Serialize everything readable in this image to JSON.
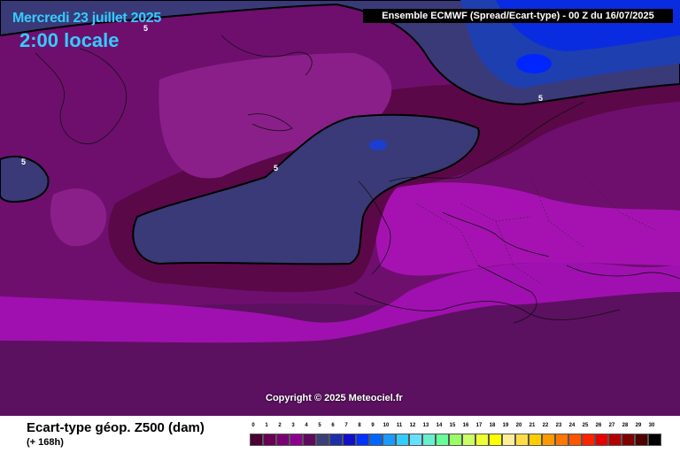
{
  "map": {
    "date_label": "Mercredi 23 juillet 2025",
    "time_label": "2:00 locale",
    "header": "Ensemble ECMWF  (Spread/Ecart-type) - 00 Z du 16/07/2025",
    "copyright": "Copyright © 2025 Meteociel.fr",
    "contour_labels": [
      "5",
      "5",
      "5",
      "5"
    ]
  },
  "footer": {
    "variable": "Ecart-type géop. Z500 (dam)",
    "lead_time": "(+ 168h)"
  },
  "legend": {
    "ticks": [
      "0",
      "1",
      "2",
      "3",
      "4",
      "5",
      "6",
      "7",
      "8",
      "9",
      "10",
      "11",
      "12",
      "13",
      "14",
      "15",
      "16",
      "17",
      "18",
      "19",
      "20",
      "21",
      "22",
      "23",
      "24",
      "25",
      "26",
      "27",
      "28",
      "29",
      "30"
    ],
    "colors": [
      "#4b0033",
      "#6a0052",
      "#7a0075",
      "#8c008f",
      "#5e0b5e",
      "#3b3f78",
      "#1c2fa8",
      "#1010cc",
      "#0033ff",
      "#0066ff",
      "#1a99ff",
      "#33ccff",
      "#66e0ff",
      "#66f0cc",
      "#66ff99",
      "#99ff66",
      "#ccff66",
      "#eeff33",
      "#ffff00",
      "#ffee99",
      "#ffdd44",
      "#ffcc00",
      "#ff9900",
      "#ff7700",
      "#ff5500",
      "#ff2200",
      "#e60000",
      "#b30000",
      "#800000",
      "#4d0000",
      "#000000"
    ]
  }
}
